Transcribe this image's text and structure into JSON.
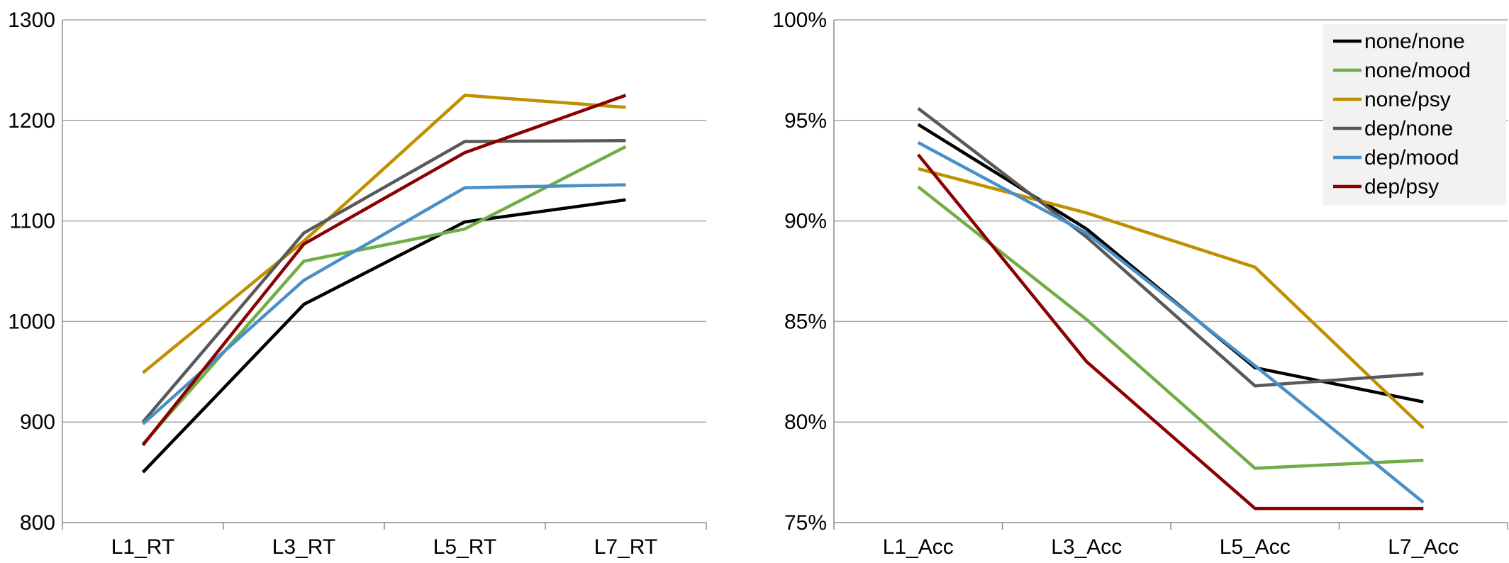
{
  "chart_data": [
    {
      "type": "line",
      "title": "",
      "xlabel": "",
      "ylabel": "",
      "categories": [
        "L1_RT",
        "L3_RT",
        "L5_RT",
        "L7_RT"
      ],
      "ylim": [
        800,
        1300
      ],
      "yticks": [
        "800",
        "900",
        "1000",
        "1100",
        "1200",
        "1300"
      ],
      "ytick_values": [
        800,
        900,
        1000,
        1100,
        1200,
        1300
      ],
      "grid": true,
      "series": [
        {
          "name": "none/none",
          "color": "#000000",
          "values": [
            850,
            1017,
            1099,
            1121
          ]
        },
        {
          "name": "none/mood",
          "color": "#70AD47",
          "values": [
            878,
            1060,
            1092,
            1174
          ]
        },
        {
          "name": "none/psy",
          "color": "#BF9000",
          "values": [
            949,
            1080,
            1225,
            1213
          ]
        },
        {
          "name": "dep/none",
          "color": "#595959",
          "values": [
            900,
            1088,
            1179,
            1180
          ]
        },
        {
          "name": "dep/mood",
          "color": "#4A90C8",
          "values": [
            898,
            1041,
            1133,
            1136
          ]
        },
        {
          "name": "dep/psy",
          "color": "#8B0000",
          "values": [
            877,
            1077,
            1168,
            1225
          ]
        }
      ]
    },
    {
      "type": "line",
      "title": "",
      "xlabel": "",
      "ylabel": "",
      "categories": [
        "L1_Acc",
        "L3_Acc",
        "L5_Acc",
        "L7_Acc"
      ],
      "ylim": [
        75,
        100
      ],
      "yticks": [
        "75%",
        "80%",
        "85%",
        "90%",
        "95%",
        "100%"
      ],
      "ytick_values": [
        75,
        80,
        85,
        90,
        95,
        100
      ],
      "grid": true,
      "legend_position": "top-right",
      "series": [
        {
          "name": "none/none",
          "color": "#000000",
          "values": [
            94.8,
            89.6,
            82.7,
            81.0
          ]
        },
        {
          "name": "none/mood",
          "color": "#70AD47",
          "values": [
            91.7,
            85.1,
            77.7,
            78.1
          ]
        },
        {
          "name": "none/psy",
          "color": "#BF9000",
          "values": [
            92.6,
            90.4,
            87.7,
            79.7
          ]
        },
        {
          "name": "dep/none",
          "color": "#595959",
          "values": [
            95.6,
            89.2,
            81.8,
            82.4
          ]
        },
        {
          "name": "dep/mood",
          "color": "#4A90C8",
          "values": [
            93.9,
            89.4,
            82.8,
            76.0
          ]
        },
        {
          "name": "dep/psy",
          "color": "#8B0000",
          "values": [
            93.3,
            83.0,
            75.7,
            75.7
          ]
        }
      ]
    }
  ]
}
